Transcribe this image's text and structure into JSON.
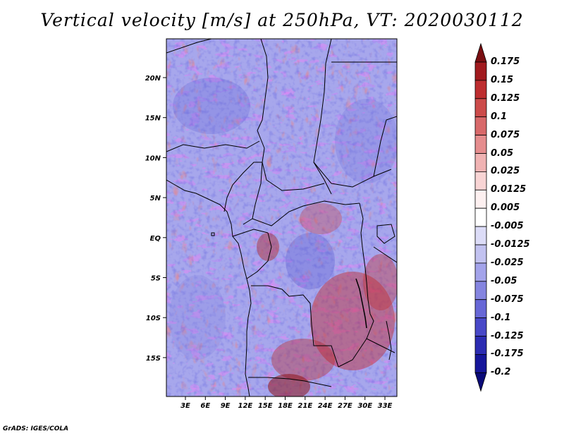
{
  "title": "Vertical velocity [m/s] at 250hPa, VT: 2020030112",
  "credit": "GrADS: IGES/COLA",
  "lat_labels": [
    "20N",
    "15N",
    "10N",
    "5N",
    "EQ",
    "5S",
    "10S",
    "15S"
  ],
  "lon_labels": [
    "3E",
    "6E",
    "9E",
    "12E",
    "15E",
    "18E",
    "21E",
    "24E",
    "27E",
    "30E",
    "33E"
  ],
  "colorbar": {
    "units": "m/s",
    "min": -0.2,
    "max": 0.175,
    "levels": [
      "0.175",
      "0.15",
      "0.125",
      "0.1",
      "0.075",
      "0.05",
      "0.025",
      "0.0125",
      "0.005",
      "-0.005",
      "-0.0125",
      "-0.025",
      "-0.05",
      "-0.075",
      "-0.1",
      "-0.125",
      "-0.175",
      "-0.2"
    ],
    "colors": [
      "#7a0f12",
      "#a11a1e",
      "#bd2d2f",
      "#cc4b4a",
      "#d8696a",
      "#e58d8e",
      "#f0b3b3",
      "#f8d4d4",
      "#fdf0f0",
      "#ffffff",
      "#dcdcf7",
      "#c2c2f0",
      "#a3a3ea",
      "#8585e0",
      "#6767d6",
      "#4848c8",
      "#2c2cb2",
      "#16169a",
      "#0a0a78"
    ]
  },
  "map": {
    "domain": "Central Africa",
    "lat_range": [
      -20,
      25
    ],
    "lon_range": [
      0,
      35
    ]
  }
}
